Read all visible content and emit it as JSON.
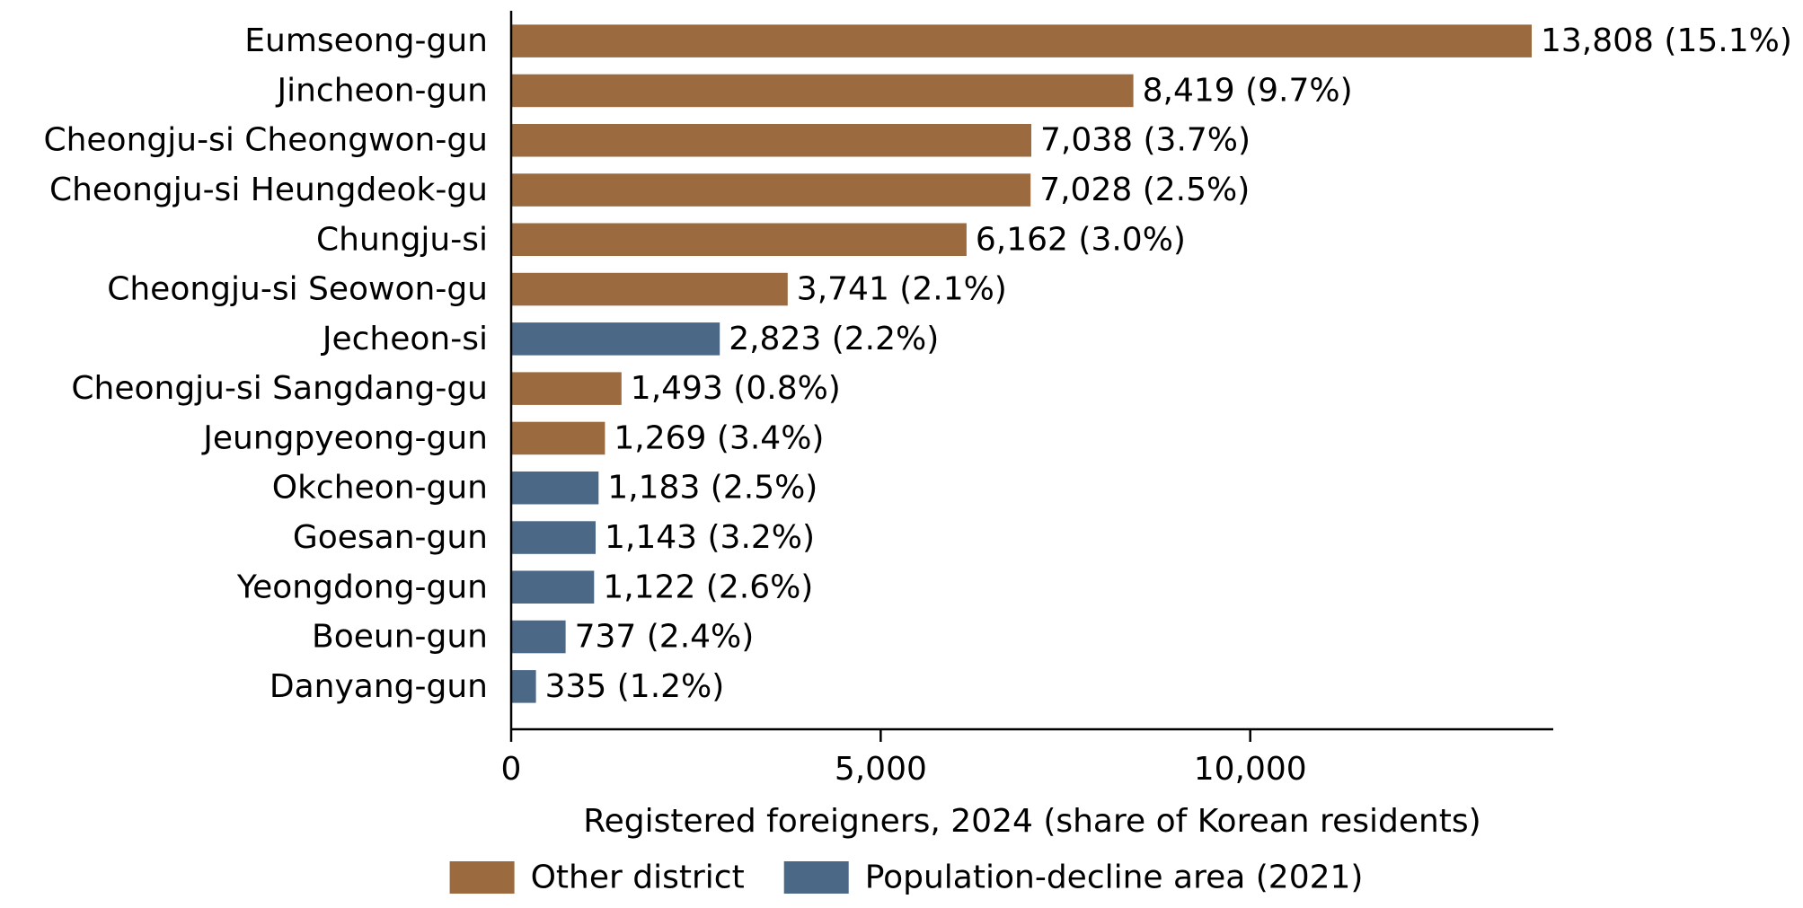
{
  "chart_data": {
    "type": "bar",
    "orientation": "horizontal",
    "categories": [
      "Eumseong-gun",
      "Jincheon-gun",
      "Cheongju-si Cheongwon-gu",
      "Cheongju-si Heungdeok-gu",
      "Chungju-si",
      "Cheongju-si Seowon-gu",
      "Jecheon-si",
      "Cheongju-si Sangdang-gu",
      "Jeungpyeong-gun",
      "Okcheon-gun",
      "Goesan-gun",
      "Yeongdong-gun",
      "Boeun-gun",
      "Danyang-gun"
    ],
    "values": [
      13808,
      8419,
      7038,
      7028,
      6162,
      3741,
      2823,
      1493,
      1269,
      1183,
      1143,
      1122,
      737,
      335
    ],
    "groups": [
      "Other district",
      "Other district",
      "Other district",
      "Other district",
      "Other district",
      "Other district",
      "Population-decline area (2021)",
      "Other district",
      "Other district",
      "Population-decline area (2021)",
      "Population-decline area (2021)",
      "Population-decline area (2021)",
      "Population-decline area (2021)",
      "Population-decline area (2021)"
    ],
    "data_labels": [
      "13,808 (15.1%)",
      "8,419 (9.7%)",
      "7,038 (3.7%)",
      "7,028 (2.5%)",
      "6,162 (3.0%)",
      "3,741 (2.1%)",
      "2,823 (2.2%)",
      "1,493 (0.8%)",
      "1,269 (3.4%)",
      "1,183 (2.5%)",
      "1,143 (3.2%)",
      "1,122 (2.6%)",
      "737 (2.4%)",
      "335 (1.2%)"
    ],
    "xticks": [
      0,
      5000,
      10000
    ],
    "xtick_labels": [
      "0",
      "5,000",
      "10,000"
    ],
    "xlim": [
      0,
      14100
    ],
    "xlabel": "Registered foreigners, 2024 (share of Korean residents)",
    "ylabel": "",
    "title": "",
    "grid": false,
    "legend": {
      "placement": "bottom-center",
      "entries": [
        {
          "name": "Other district",
          "color": "#9b6a3f"
        },
        {
          "name": "Population-decline area (2021)",
          "color": "#4b6886"
        }
      ]
    },
    "colors": {
      "Other district": "#9b6a3f",
      "Population-decline area (2021)": "#4b6886"
    }
  }
}
